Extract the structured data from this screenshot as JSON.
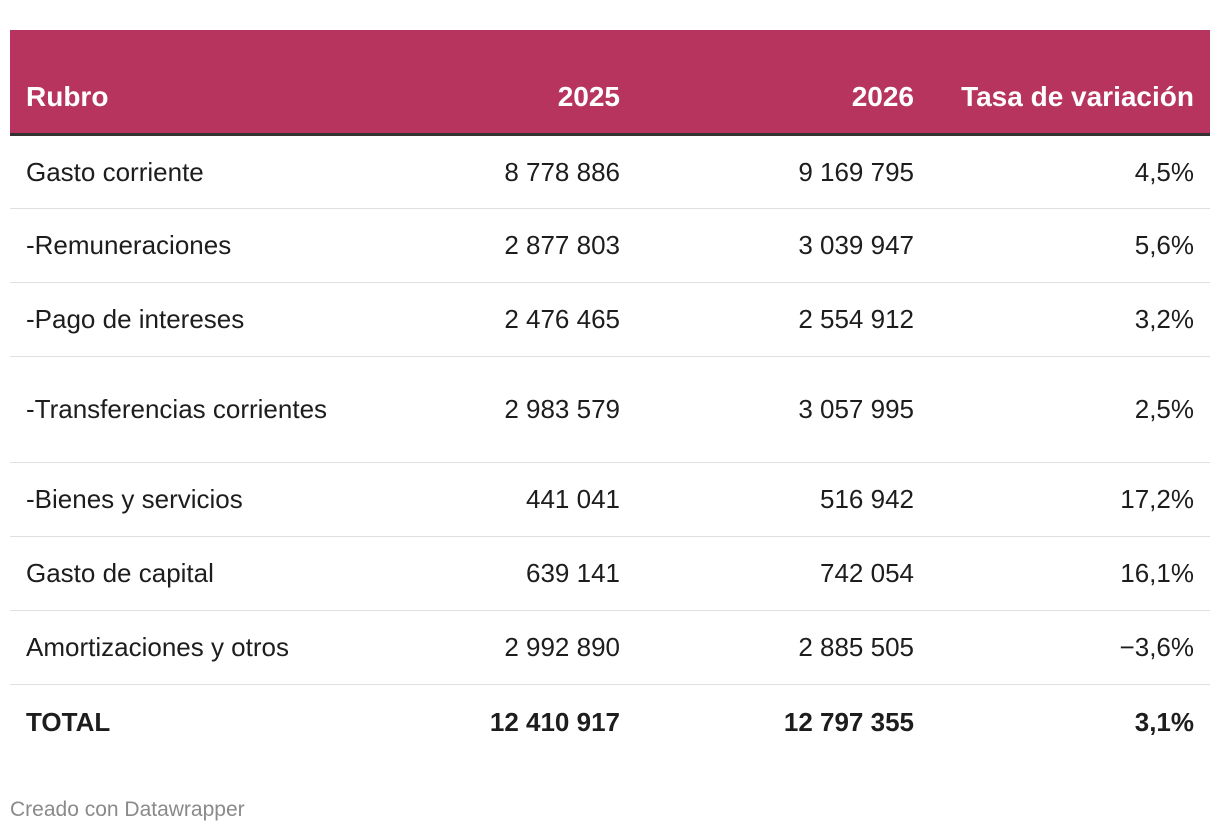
{
  "chart_data": {
    "type": "table",
    "columns": [
      "Rubro",
      "2025",
      "2026",
      "Tasa de variación"
    ],
    "rows": [
      {
        "rubro": "Gasto corriente",
        "y2025": "8 778 886",
        "y2026": "9 169 795",
        "tasa": "4,5%"
      },
      {
        "rubro": "-Remuneraciones",
        "y2025": "2 877 803",
        "y2026": "3 039 947",
        "tasa": "5,6%"
      },
      {
        "rubro": "-Pago de intereses",
        "y2025": "2 476 465",
        "y2026": "2 554 912",
        "tasa": "3,2%"
      },
      {
        "rubro": "-Transferencias corrientes",
        "y2025": "2 983 579",
        "y2026": "3 057 995",
        "tasa": "2,5%"
      },
      {
        "rubro": "-Bienes y servicios",
        "y2025": "441 041",
        "y2026": "516 942",
        "tasa": "17,2%"
      },
      {
        "rubro": "Gasto de capital",
        "y2025": "639 141",
        "y2026": "742 054",
        "tasa": "16,1%"
      },
      {
        "rubro": "Amortizaciones y otros",
        "y2025": "2 992 890",
        "y2026": "2 885 505",
        "tasa": "−3,6%"
      },
      {
        "rubro": "TOTAL",
        "y2025": "12 410 917",
        "y2026": "12 797 355",
        "tasa": "3,1%"
      }
    ],
    "header_color": "#b7345f"
  },
  "footer": {
    "credit": "Creado con Datawrapper"
  }
}
